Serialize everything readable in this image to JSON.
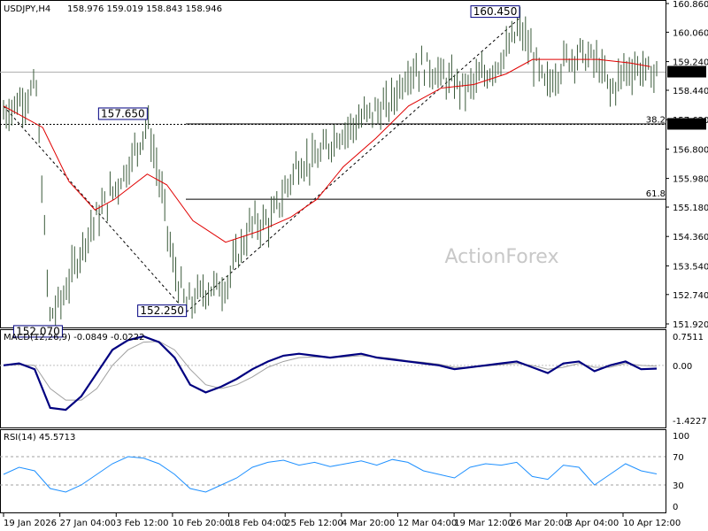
{
  "header": {
    "symbol": "USDJPY,H4",
    "ohlc": "158.976 159.019 158.843 158.946"
  },
  "watermark": "ActionForex",
  "colors": {
    "price_bar": "#3a5a3a",
    "ma_line": "#e00000",
    "macd_line": "#000080",
    "signal_line": "#a0a0a0",
    "label_border": "#000080",
    "current_price_bg": "#000000",
    "guide_line": "#000000"
  },
  "chart_data": [
    {
      "type": "ohlc",
      "pane": "price",
      "y_ticks": [
        "160.860",
        "160.060",
        "159.240",
        "158.440",
        "157.620",
        "156.800",
        "155.980",
        "155.180",
        "154.360",
        "153.540",
        "152.740",
        "151.920"
      ],
      "ylim": [
        151.92,
        160.86
      ],
      "current_price": "158.946",
      "level_label": "157.490",
      "fib_labels": [
        "38.2",
        "61.8"
      ],
      "annotations": [
        "160.450",
        "157.650",
        "152.070",
        "152.250"
      ],
      "series": [
        {
          "x": 0,
          "y": 157.8
        },
        {
          "x": 5,
          "y": 158.5
        },
        {
          "x": 7,
          "y": 152.1
        },
        {
          "x": 9,
          "y": 152.6
        },
        {
          "x": 11,
          "y": 153.6
        },
        {
          "x": 13,
          "y": 154.5
        },
        {
          "x": 16,
          "y": 155.4
        },
        {
          "x": 19,
          "y": 156.3
        },
        {
          "x": 21,
          "y": 157.1
        },
        {
          "x": 22,
          "y": 157.6
        },
        {
          "x": 24,
          "y": 155.8
        },
        {
          "x": 26,
          "y": 153.5
        },
        {
          "x": 28,
          "y": 152.4
        },
        {
          "x": 31,
          "y": 152.9
        },
        {
          "x": 34,
          "y": 153.0
        },
        {
          "x": 36,
          "y": 153.9
        },
        {
          "x": 38,
          "y": 154.7
        },
        {
          "x": 41,
          "y": 154.8
        },
        {
          "x": 43,
          "y": 155.6
        },
        {
          "x": 45,
          "y": 156.4
        },
        {
          "x": 48,
          "y": 156.5
        },
        {
          "x": 51,
          "y": 157.2
        },
        {
          "x": 54,
          "y": 157.5
        },
        {
          "x": 56,
          "y": 157.8
        },
        {
          "x": 59,
          "y": 158.0
        },
        {
          "x": 62,
          "y": 159.0
        },
        {
          "x": 65,
          "y": 159.1
        },
        {
          "x": 68,
          "y": 158.7
        },
        {
          "x": 71,
          "y": 158.5
        },
        {
          "x": 74,
          "y": 158.9
        },
        {
          "x": 77,
          "y": 159.5
        },
        {
          "x": 79,
          "y": 160.2
        },
        {
          "x": 81,
          "y": 159.4
        },
        {
          "x": 83,
          "y": 158.5
        },
        {
          "x": 86,
          "y": 159.3
        },
        {
          "x": 88,
          "y": 159.5
        },
        {
          "x": 91,
          "y": 159.2
        },
        {
          "x": 93,
          "y": 158.4
        },
        {
          "x": 95,
          "y": 159.0
        },
        {
          "x": 97,
          "y": 159.1
        },
        {
          "x": 99,
          "y": 158.9
        },
        {
          "x": 100,
          "y": 158.95
        }
      ],
      "ma": [
        {
          "x": 0,
          "y": 158.0
        },
        {
          "x": 6,
          "y": 157.4
        },
        {
          "x": 10,
          "y": 155.9
        },
        {
          "x": 14,
          "y": 155.1
        },
        {
          "x": 17,
          "y": 155.4
        },
        {
          "x": 22,
          "y": 156.1
        },
        {
          "x": 25,
          "y": 155.8
        },
        {
          "x": 29,
          "y": 154.8
        },
        {
          "x": 34,
          "y": 154.2
        },
        {
          "x": 39,
          "y": 154.5
        },
        {
          "x": 44,
          "y": 154.9
        },
        {
          "x": 48,
          "y": 155.4
        },
        {
          "x": 52,
          "y": 156.3
        },
        {
          "x": 57,
          "y": 157.1
        },
        {
          "x": 62,
          "y": 158.0
        },
        {
          "x": 67,
          "y": 158.5
        },
        {
          "x": 72,
          "y": 158.6
        },
        {
          "x": 77,
          "y": 158.9
        },
        {
          "x": 81,
          "y": 159.3
        },
        {
          "x": 86,
          "y": 159.3
        },
        {
          "x": 91,
          "y": 159.3
        },
        {
          "x": 96,
          "y": 159.2
        },
        {
          "x": 99,
          "y": 159.1
        }
      ]
    },
    {
      "type": "line",
      "pane": "macd",
      "title": "MACD(12,26,9) -0.0849 -0.0222",
      "y_ticks": [
        "0.7511",
        "0.00",
        "-1.4227"
      ],
      "ylim": [
        -1.4227,
        0.7511
      ],
      "series": [
        {
          "name": "MACD",
          "values": [
            0.0,
            0.05,
            -0.1,
            -1.1,
            -1.15,
            -0.8,
            -0.2,
            0.4,
            0.65,
            0.75,
            0.6,
            0.2,
            -0.5,
            -0.7,
            -0.55,
            -0.35,
            -0.1,
            0.1,
            0.25,
            0.3,
            0.25,
            0.2,
            0.25,
            0.3,
            0.2,
            0.15,
            0.1,
            0.05,
            0.0,
            -0.1,
            -0.05,
            0.0,
            0.05,
            0.1,
            -0.05,
            -0.2,
            0.05,
            0.1,
            -0.15,
            0.0,
            0.1,
            -0.1,
            -0.0849
          ]
        },
        {
          "name": "Signal",
          "values": [
            0.0,
            0.02,
            0.0,
            -0.6,
            -0.9,
            -0.9,
            -0.6,
            0.0,
            0.4,
            0.6,
            0.62,
            0.4,
            -0.1,
            -0.5,
            -0.6,
            -0.5,
            -0.3,
            -0.05,
            0.1,
            0.2,
            0.22,
            0.2,
            0.22,
            0.25,
            0.22,
            0.18,
            0.12,
            0.08,
            0.03,
            -0.05,
            -0.05,
            -0.02,
            0.02,
            0.05,
            0.0,
            -0.1,
            -0.05,
            0.05,
            -0.05,
            -0.05,
            0.05,
            0.0,
            -0.0222
          ]
        }
      ]
    },
    {
      "type": "line",
      "pane": "rsi",
      "title": "RSI(14) 45.5713",
      "y_ticks": [
        "100",
        "70",
        "30",
        "0"
      ],
      "ylim": [
        0,
        100
      ],
      "series": [
        {
          "name": "RSI",
          "values": [
            45,
            55,
            50,
            25,
            20,
            30,
            45,
            60,
            70,
            68,
            60,
            45,
            25,
            20,
            30,
            40,
            55,
            62,
            65,
            58,
            62,
            56,
            60,
            64,
            58,
            66,
            62,
            50,
            45,
            40,
            55,
            60,
            58,
            62,
            42,
            38,
            58,
            55,
            30,
            45,
            60,
            50,
            45.5713
          ]
        }
      ]
    }
  ],
  "x_axis": {
    "labels": [
      "19 Jan 2026",
      "27 Jan 04:00",
      "3 Feb 12:00",
      "10 Feb 20:00",
      "18 Feb 04:00",
      "25 Feb 12:00",
      "4 Mar 20:00",
      "12 Mar 04:00",
      "19 Mar 12:00",
      "26 Mar 20:00",
      "3 Apr 04:00",
      "10 Apr 12:00"
    ]
  }
}
